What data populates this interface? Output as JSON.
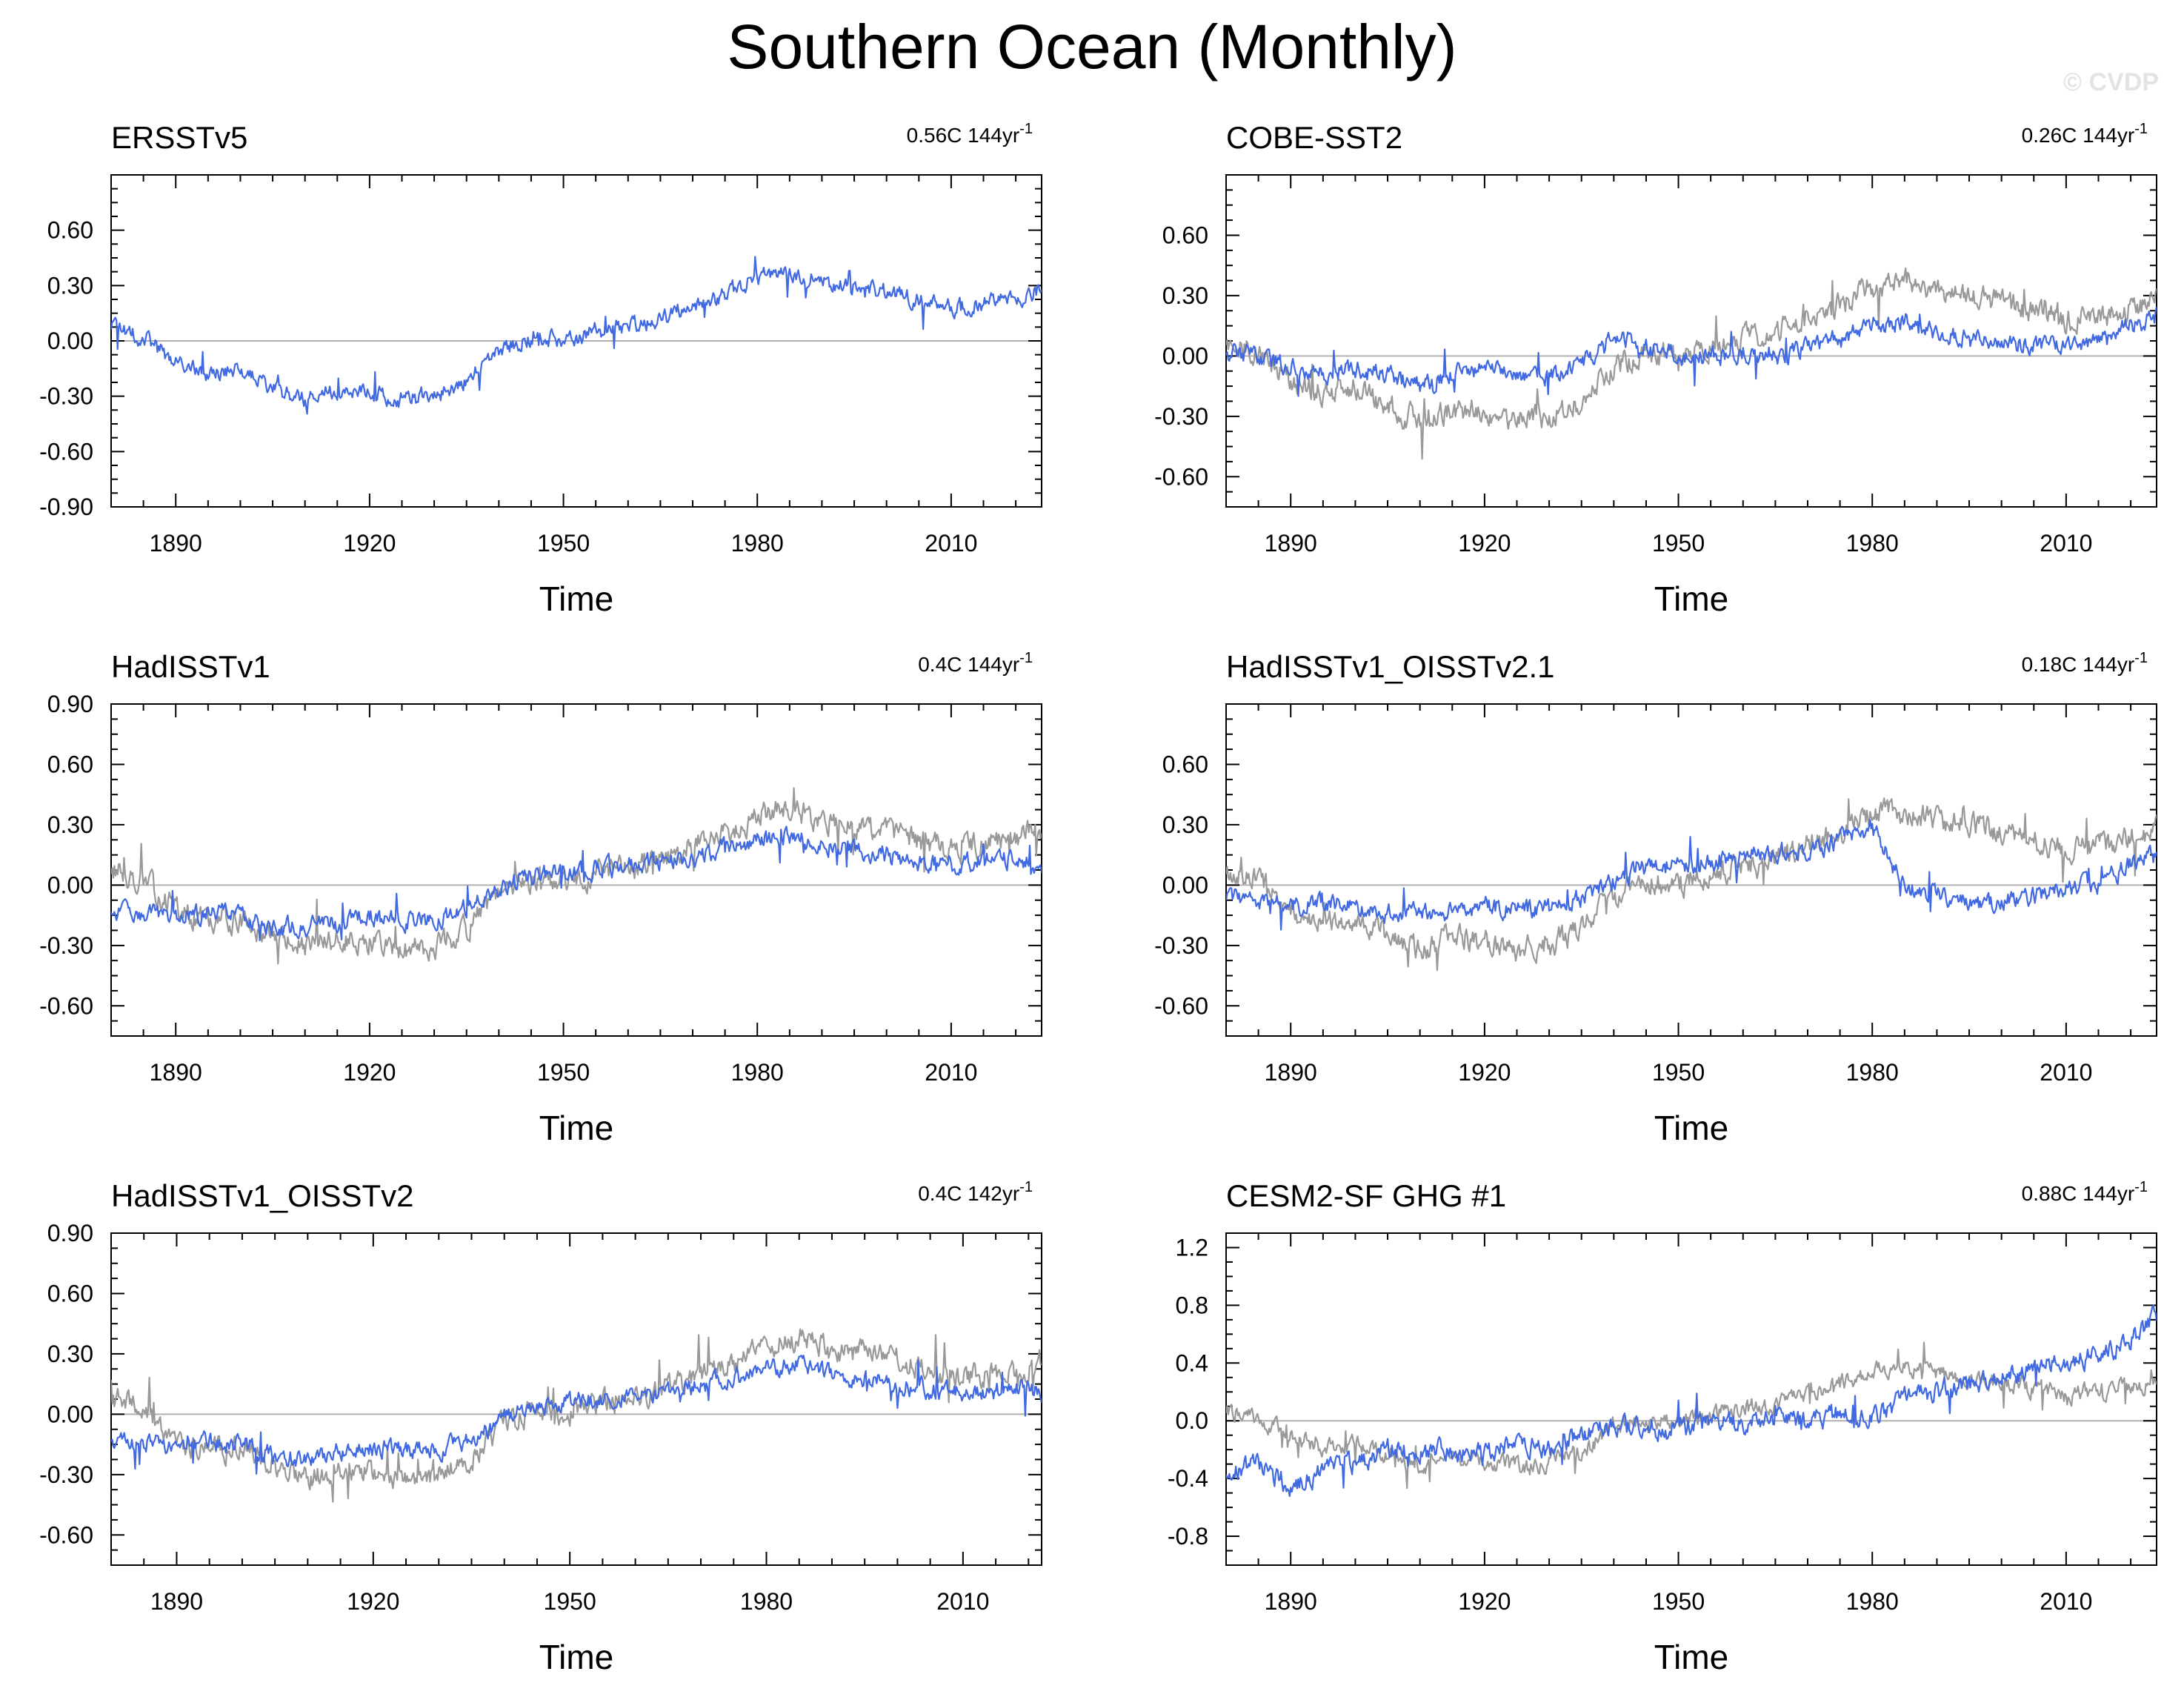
{
  "title": "Southern Ocean (Monthly)",
  "watermark": "© CVDP",
  "colors": {
    "observed": "#4169E1",
    "reference": "#999999",
    "zero_line": "#b0b0b0"
  },
  "chart_data": [
    {
      "type": "line",
      "title": "ERSSTv5",
      "trend_label": "0.56C 144yr",
      "trend_unit_superscript": "-1",
      "xlabel": "Time",
      "ylabel": "",
      "xlim": [
        1880,
        2024
      ],
      "ylim": [
        -0.9,
        0.9
      ],
      "x_ticks": [
        1890,
        1920,
        1950,
        1980,
        2010
      ],
      "y_ticks": [
        "-0.90",
        "-0.60",
        "-0.30",
        "0.00",
        "0.30",
        "0.60"
      ],
      "show_reference": false,
      "series": [
        {
          "x": [
            1880,
            1885,
            1890,
            1895,
            1900,
            1905,
            1910,
            1915,
            1920,
            1925,
            1930,
            1935,
            1940,
            1945,
            1950,
            1955,
            1960,
            1965,
            1970,
            1975,
            1980,
            1985,
            1990,
            1995,
            2000,
            2005,
            2010,
            2015,
            2020,
            2024
          ],
          "y": [
            0.08,
            0.02,
            -0.12,
            -0.18,
            -0.16,
            -0.25,
            -0.32,
            -0.26,
            -0.28,
            -0.32,
            -0.3,
            -0.22,
            -0.05,
            0.02,
            0.0,
            0.05,
            0.08,
            0.12,
            0.2,
            0.25,
            0.35,
            0.38,
            0.32,
            0.3,
            0.26,
            0.22,
            0.18,
            0.2,
            0.24,
            0.28
          ]
        }
      ]
    },
    {
      "type": "line",
      "title": "COBE-SST2",
      "trend_label": "0.26C 144yr",
      "trend_unit_superscript": "-1",
      "xlabel": "Time",
      "ylabel": "",
      "xlim": [
        1880,
        2024
      ],
      "ylim": [
        -0.75,
        0.9
      ],
      "x_ticks": [
        1890,
        1920,
        1950,
        1980,
        2010
      ],
      "y_ticks": [
        "-0.60",
        "-0.30",
        "0.00",
        "0.30",
        "0.60"
      ],
      "show_reference": true,
      "series": [
        {
          "x": [
            1880,
            1885,
            1890,
            1895,
            1900,
            1905,
            1910,
            1915,
            1920,
            1925,
            1930,
            1935,
            1940,
            1945,
            1950,
            1955,
            1960,
            1965,
            1970,
            1975,
            1980,
            1985,
            1990,
            1995,
            2000,
            2005,
            2010,
            2015,
            2020,
            2024
          ],
          "y": [
            0.02,
            0.0,
            -0.05,
            -0.08,
            -0.06,
            -0.1,
            -0.15,
            -0.08,
            -0.06,
            -0.08,
            -0.1,
            -0.05,
            0.1,
            0.05,
            0.0,
            0.0,
            0.02,
            0.0,
            0.05,
            0.08,
            0.15,
            0.18,
            0.12,
            0.08,
            0.05,
            0.06,
            0.04,
            0.08,
            0.15,
            0.2
          ]
        }
      ]
    },
    {
      "type": "line",
      "title": "HadISSTv1",
      "trend_label": "0.4C 144yr",
      "trend_unit_superscript": "-1",
      "xlabel": "Time",
      "ylabel": "",
      "xlim": [
        1880,
        2024
      ],
      "ylim": [
        -0.75,
        0.9
      ],
      "x_ticks": [
        1890,
        1920,
        1950,
        1980,
        2010
      ],
      "y_ticks": [
        "-0.60",
        "-0.30",
        "0.00",
        "0.30",
        "0.60",
        "0.90"
      ],
      "show_reference": true,
      "series": [
        {
          "x": [
            1880,
            1885,
            1890,
            1895,
            1900,
            1905,
            1910,
            1915,
            1920,
            1925,
            1930,
            1935,
            1940,
            1945,
            1950,
            1955,
            1960,
            1965,
            1970,
            1975,
            1980,
            1985,
            1990,
            1995,
            2000,
            2005,
            2010,
            2015,
            2020,
            2024
          ],
          "y": [
            -0.12,
            -0.14,
            -0.15,
            -0.14,
            -0.15,
            -0.2,
            -0.22,
            -0.18,
            -0.16,
            -0.18,
            -0.18,
            -0.12,
            -0.02,
            0.05,
            0.06,
            0.08,
            0.1,
            0.12,
            0.14,
            0.18,
            0.22,
            0.25,
            0.2,
            0.18,
            0.15,
            0.12,
            0.1,
            0.12,
            0.14,
            0.1
          ]
        }
      ]
    },
    {
      "type": "line",
      "title": "HadISSTv1_OISSTv2.1",
      "trend_label": "0.18C 144yr",
      "trend_unit_superscript": "-1",
      "xlabel": "Time",
      "ylabel": "",
      "xlim": [
        1880,
        2024
      ],
      "ylim": [
        -0.75,
        0.9
      ],
      "x_ticks": [
        1890,
        1920,
        1950,
        1980,
        2010
      ],
      "y_ticks": [
        "-0.60",
        "-0.30",
        "0.00",
        "0.30",
        "0.60"
      ],
      "show_reference": true,
      "series": [
        {
          "x": [
            1880,
            1885,
            1890,
            1895,
            1900,
            1905,
            1910,
            1915,
            1920,
            1925,
            1930,
            1935,
            1940,
            1945,
            1950,
            1955,
            1960,
            1965,
            1970,
            1975,
            1980,
            1985,
            1990,
            1995,
            2000,
            2005,
            2010,
            2015,
            2020,
            2024
          ],
          "y": [
            -0.06,
            -0.08,
            -0.1,
            -0.09,
            -0.1,
            -0.14,
            -0.15,
            -0.12,
            -0.1,
            -0.12,
            -0.12,
            -0.06,
            0.02,
            0.08,
            0.1,
            0.12,
            0.14,
            0.16,
            0.18,
            0.22,
            0.28,
            0.0,
            -0.05,
            -0.1,
            -0.08,
            -0.05,
            -0.02,
            0.0,
            0.1,
            0.15
          ]
        }
      ]
    },
    {
      "type": "line",
      "title": "HadISSTv1_OISSTv2",
      "trend_label": "0.4C 142yr",
      "trend_unit_superscript": "-1",
      "xlabel": "Time",
      "ylabel": "",
      "xlim": [
        1880,
        2022
      ],
      "ylim": [
        -0.75,
        0.9
      ],
      "x_ticks": [
        1890,
        1920,
        1950,
        1980,
        2010
      ],
      "y_ticks": [
        "-0.60",
        "-0.30",
        "0.00",
        "0.30",
        "0.60",
        "0.90"
      ],
      "show_reference": true,
      "series": [
        {
          "x": [
            1880,
            1885,
            1890,
            1895,
            1900,
            1905,
            1910,
            1915,
            1920,
            1925,
            1930,
            1935,
            1940,
            1945,
            1950,
            1955,
            1960,
            1965,
            1970,
            1975,
            1980,
            1985,
            1990,
            1995,
            2000,
            2005,
            2010,
            2015,
            2020,
            2022
          ],
          "y": [
            -0.12,
            -0.14,
            -0.15,
            -0.14,
            -0.15,
            -0.2,
            -0.22,
            -0.18,
            -0.16,
            -0.18,
            -0.18,
            -0.12,
            -0.02,
            0.05,
            0.06,
            0.08,
            0.1,
            0.12,
            0.14,
            0.18,
            0.22,
            0.25,
            0.2,
            0.18,
            0.15,
            0.12,
            0.1,
            0.12,
            0.14,
            0.1
          ]
        }
      ]
    },
    {
      "type": "line",
      "title": "CESM2-SF GHG #1",
      "trend_label": "0.88C 144yr",
      "trend_unit_superscript": "-1",
      "xlabel": "Time",
      "ylabel": "",
      "xlim": [
        1880,
        2024
      ],
      "ylim": [
        -1.0,
        1.3
      ],
      "x_ticks": [
        1890,
        1920,
        1950,
        1980,
        2010
      ],
      "y_ticks": [
        "-0.8",
        "-0.4",
        "0.0",
        "0.4",
        "0.8",
        "1.2"
      ],
      "show_reference": true,
      "series": [
        {
          "x": [
            1880,
            1885,
            1890,
            1895,
            1900,
            1905,
            1910,
            1915,
            1920,
            1925,
            1930,
            1935,
            1940,
            1945,
            1950,
            1955,
            1960,
            1965,
            1970,
            1975,
            1980,
            1985,
            1990,
            1995,
            2000,
            2005,
            2010,
            2015,
            2020,
            2024
          ],
          "y": [
            -0.35,
            -0.3,
            -0.45,
            -0.35,
            -0.3,
            -0.2,
            -0.22,
            -0.2,
            -0.25,
            -0.15,
            -0.2,
            -0.1,
            -0.05,
            -0.05,
            -0.05,
            0.0,
            -0.02,
            0.02,
            0.0,
            0.05,
            0.0,
            0.15,
            0.2,
            0.25,
            0.3,
            0.35,
            0.4,
            0.45,
            0.55,
            0.75
          ]
        }
      ]
    }
  ],
  "reference_series": {
    "name": "",
    "x": [
      1880,
      1885,
      1890,
      1895,
      1900,
      1905,
      1910,
      1915,
      1920,
      1925,
      1930,
      1935,
      1940,
      1945,
      1950,
      1955,
      1960,
      1965,
      1970,
      1975,
      1980,
      1985,
      1990,
      1995,
      2000,
      2005,
      2010,
      2015,
      2020,
      2024
    ],
    "y": [
      0.08,
      0.02,
      -0.12,
      -0.18,
      -0.16,
      -0.25,
      -0.32,
      -0.26,
      -0.28,
      -0.32,
      -0.3,
      -0.22,
      -0.05,
      0.02,
      0.0,
      0.05,
      0.08,
      0.12,
      0.2,
      0.25,
      0.35,
      0.38,
      0.32,
      0.3,
      0.26,
      0.22,
      0.18,
      0.2,
      0.24,
      0.28
    ]
  }
}
